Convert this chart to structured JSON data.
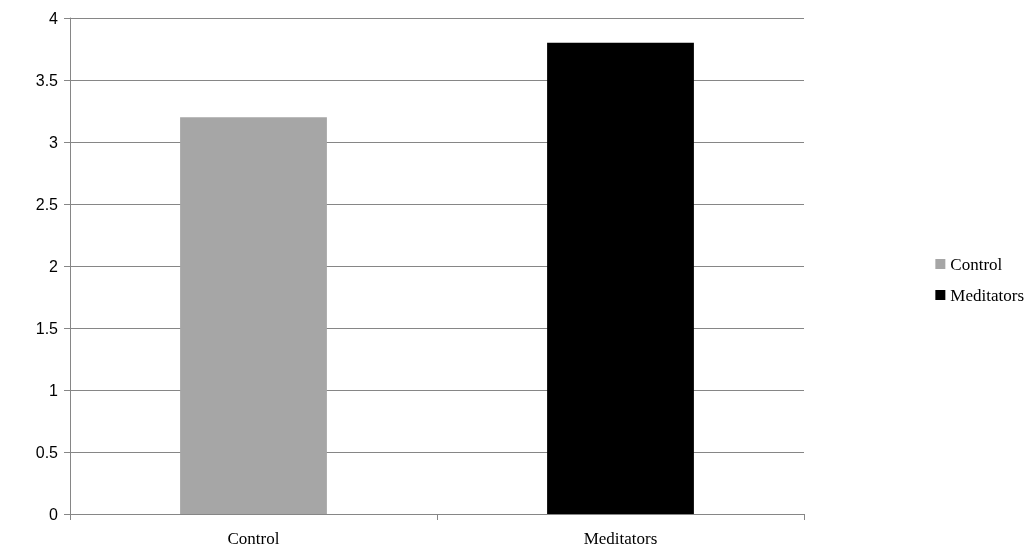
{
  "chart_data": {
    "type": "bar",
    "categories": [
      "Control",
      "Meditators"
    ],
    "series": [
      {
        "name": "Control",
        "color": "#a6a6a6",
        "values": [
          3.2,
          null
        ]
      },
      {
        "name": "Meditators",
        "color": "#000000",
        "values": [
          null,
          3.8
        ]
      }
    ],
    "ylim": [
      0,
      4
    ],
    "yticks": [
      0,
      0.5,
      1,
      1.5,
      2,
      2.5,
      3,
      3.5,
      4
    ],
    "grid": "y",
    "legend": "right"
  }
}
